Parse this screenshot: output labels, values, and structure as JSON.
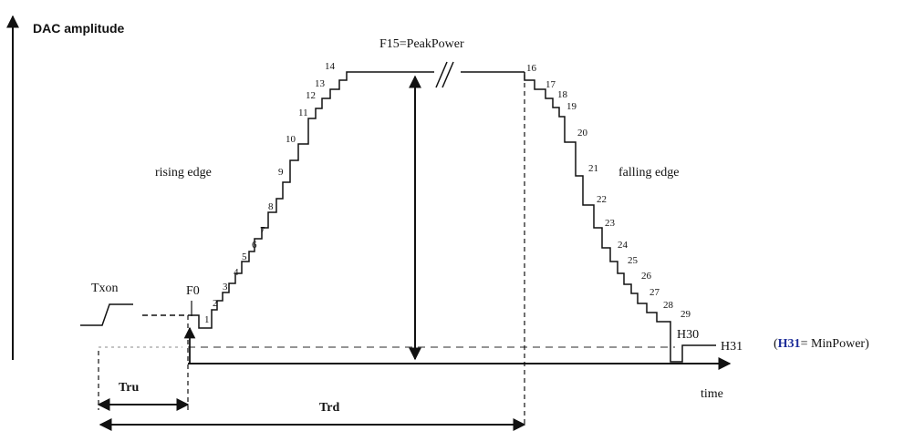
{
  "y_axis_label": "DAC amplitude",
  "x_axis_label": "time",
  "peak_label": "F15=PeakPower",
  "rising_label": "rising edge",
  "falling_label": "falling edge",
  "txon_label": "Txon",
  "f0_label": "F0",
  "h31_label": "H31",
  "h30_label": "H30",
  "legend": {
    "open": "(",
    "term": "H31",
    "rest": "= MinPower)"
  },
  "tru_label": "Tru",
  "trd_label": "Trd",
  "rising_steps": [
    "1",
    "2",
    "3",
    "4",
    "5",
    "6",
    "7",
    "8",
    "9",
    "10",
    "11",
    "12",
    "13",
    "14"
  ],
  "falling_steps": [
    "16",
    "17",
    "18",
    "19",
    "20",
    "21",
    "22",
    "23",
    "24",
    "25",
    "26",
    "27",
    "28",
    "29"
  ],
  "colors": {
    "line": "#111111",
    "blue": "#1f2f9a"
  }
}
